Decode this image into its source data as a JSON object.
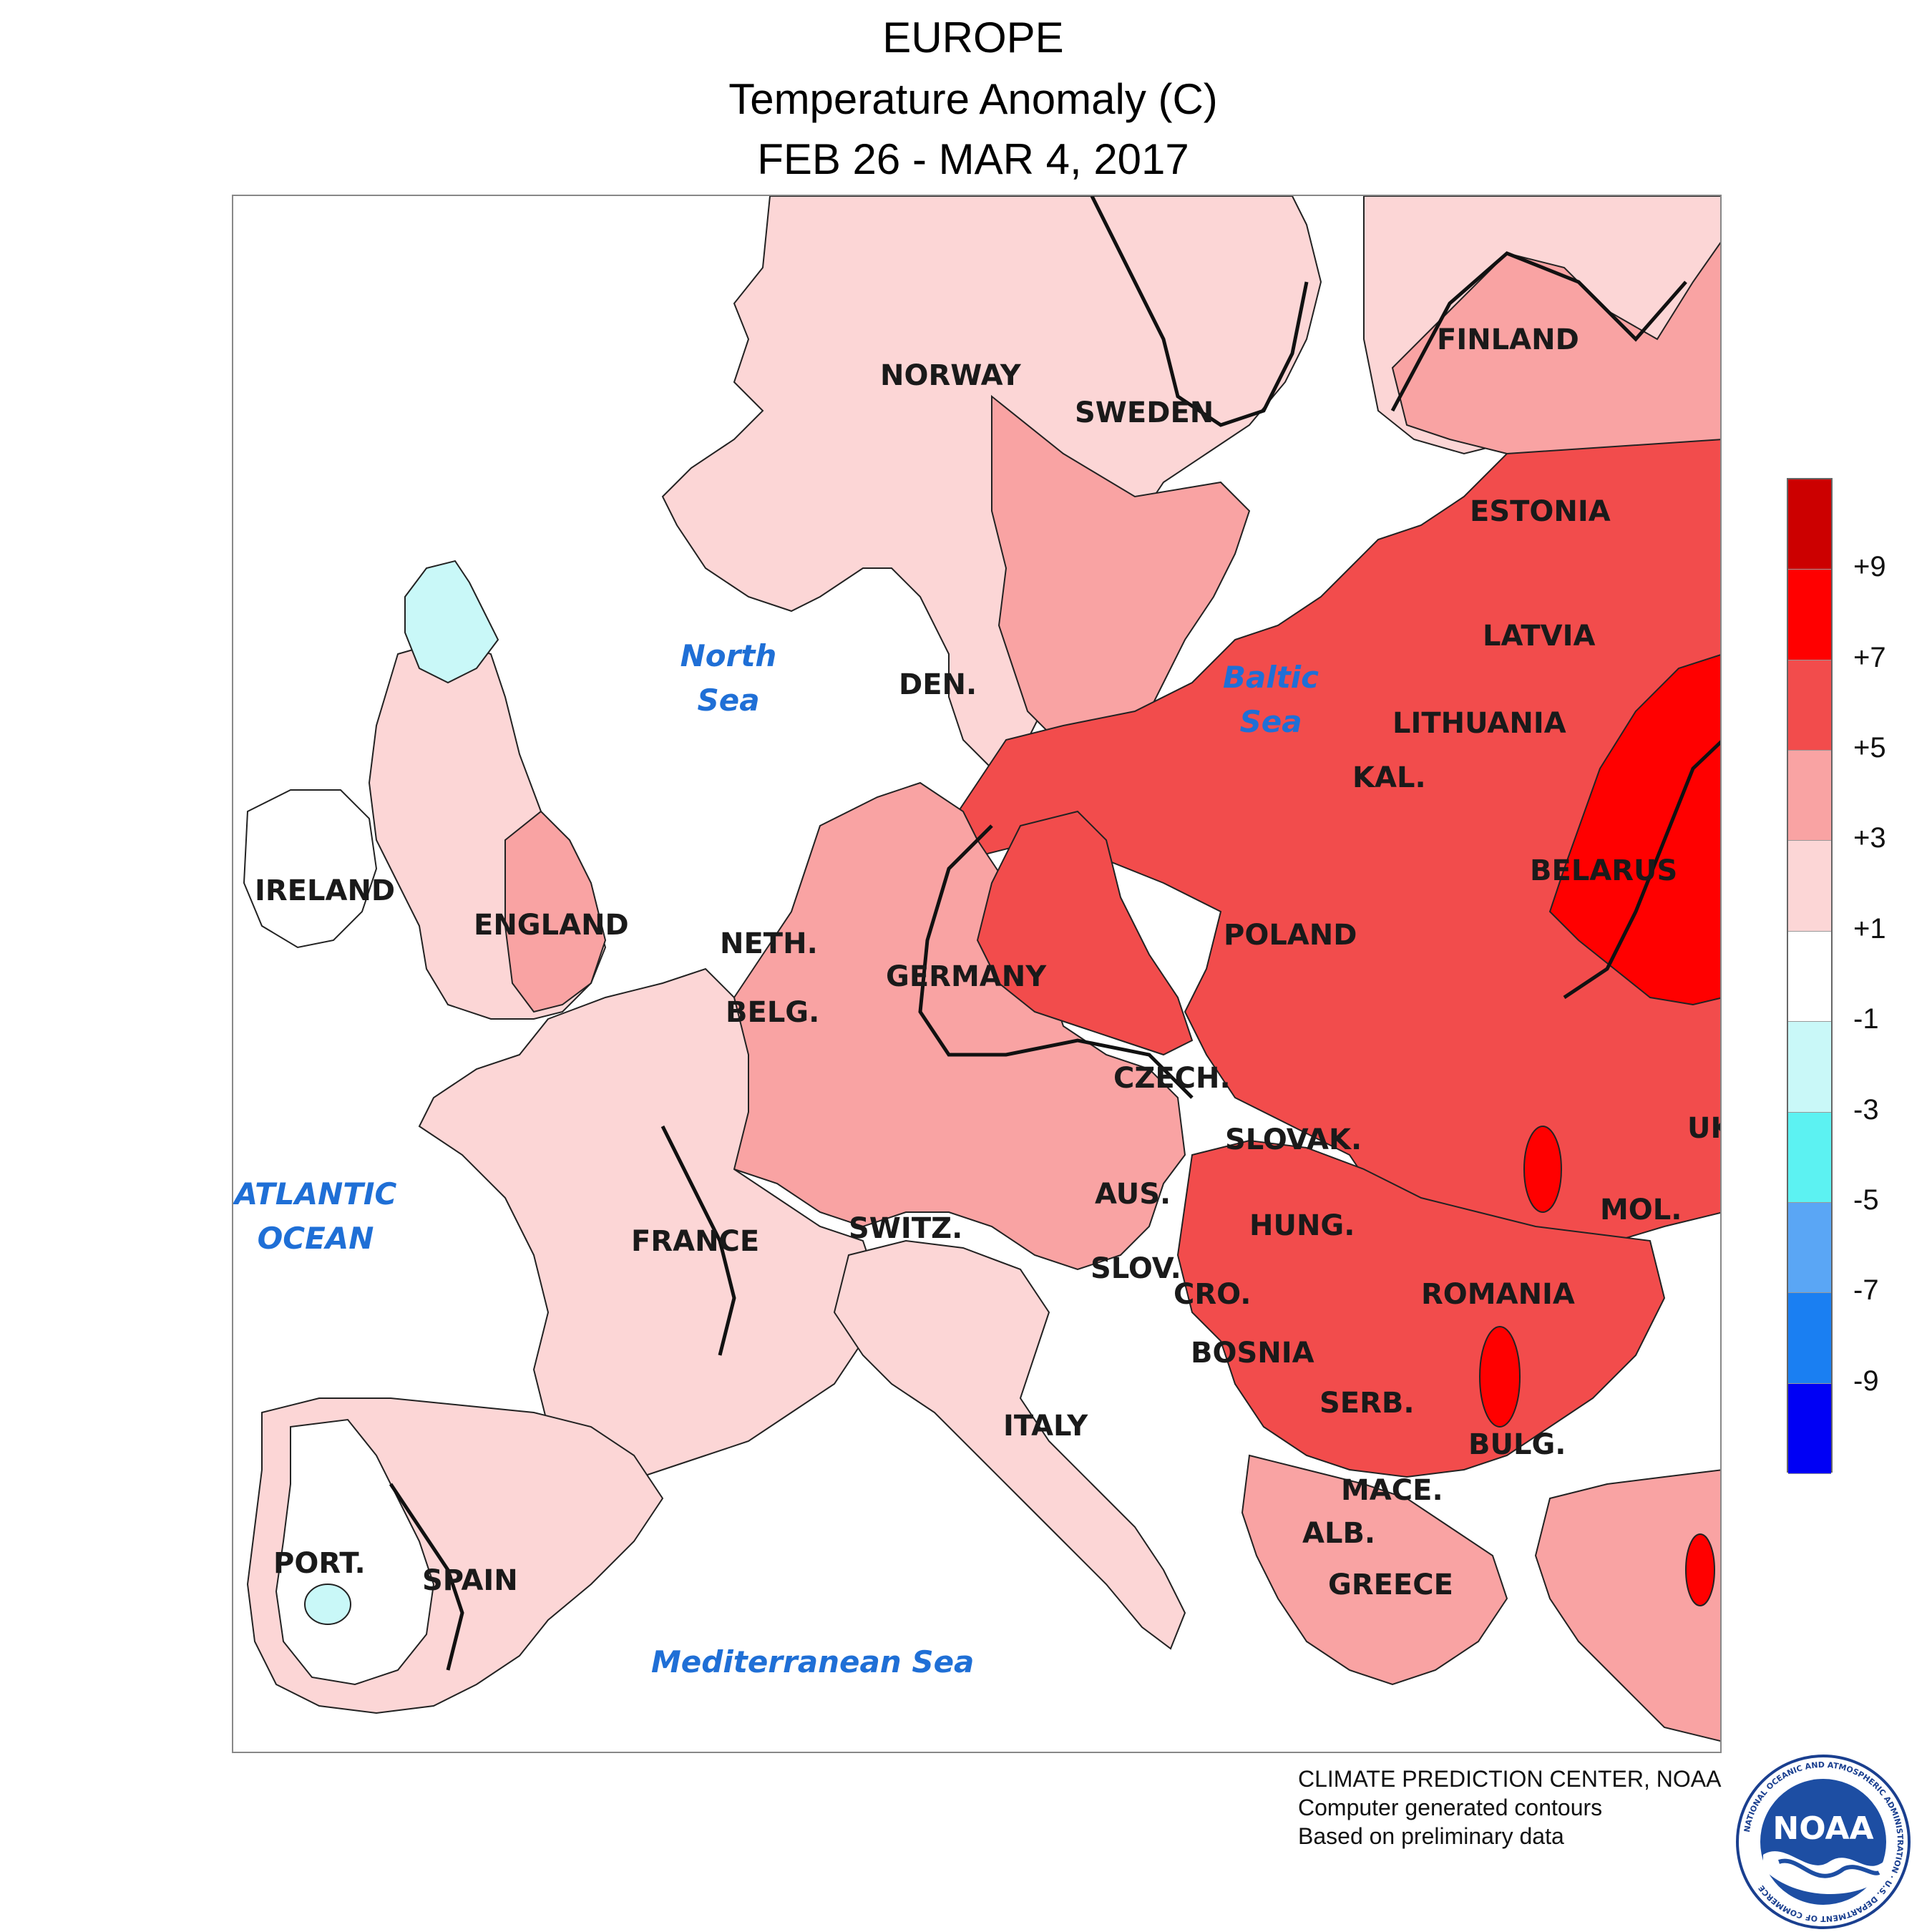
{
  "header": {
    "line1": "EUROPE",
    "line2": "Temperature Anomaly (C)",
    "line3": "FEB 26 - MAR 4, 2017"
  },
  "countries": [
    {
      "name": "NORWAY",
      "key": "norway"
    },
    {
      "name": "SWEDEN",
      "key": "sweden"
    },
    {
      "name": "FINLAND",
      "key": "finland"
    },
    {
      "name": "ESTONIA",
      "key": "estonia"
    },
    {
      "name": "LATVIA",
      "key": "latvia"
    },
    {
      "name": "LITHUANIA",
      "key": "lithuania"
    },
    {
      "name": "KAL.",
      "key": "kal"
    },
    {
      "name": "BELARUS",
      "key": "belarus"
    },
    {
      "name": "POLAND",
      "key": "poland"
    },
    {
      "name": "DEN.",
      "key": "den"
    },
    {
      "name": "IRELAND",
      "key": "ireland"
    },
    {
      "name": "ENGLAND",
      "key": "england"
    },
    {
      "name": "NETH.",
      "key": "neth"
    },
    {
      "name": "BELG.",
      "key": "belg"
    },
    {
      "name": "GERMANY",
      "key": "germany"
    },
    {
      "name": "CZECH.",
      "key": "czech"
    },
    {
      "name": "SLOVAK.",
      "key": "slovak"
    },
    {
      "name": "UK",
      "key": "uk"
    },
    {
      "name": "AUS.",
      "key": "aus"
    },
    {
      "name": "HUNG.",
      "key": "hung"
    },
    {
      "name": "MOL.",
      "key": "mol"
    },
    {
      "name": "FRANCE",
      "key": "france"
    },
    {
      "name": "SWITZ.",
      "key": "switz"
    },
    {
      "name": "SLOV.",
      "key": "slov"
    },
    {
      "name": "CRO.",
      "key": "cro"
    },
    {
      "name": "ROMANIA",
      "key": "romania"
    },
    {
      "name": "BOSNIA",
      "key": "bosnia"
    },
    {
      "name": "SERB.",
      "key": "serb"
    },
    {
      "name": "BULG.",
      "key": "bulg"
    },
    {
      "name": "ITALY",
      "key": "italy"
    },
    {
      "name": "MACE.",
      "key": "mace"
    },
    {
      "name": "ALB.",
      "key": "alb"
    },
    {
      "name": "GREECE",
      "key": "greece"
    },
    {
      "name": "PORT.",
      "key": "port"
    },
    {
      "name": "SPAIN",
      "key": "spain"
    }
  ],
  "seas": [
    {
      "key": "north_sea",
      "line1": "North",
      "line2": "Sea"
    },
    {
      "key": "baltic_sea",
      "line1": "Baltic",
      "line2": "Sea"
    },
    {
      "key": "atlantic",
      "line1": "ATLANTIC",
      "line2": "OCEAN"
    },
    {
      "key": "mediterranean",
      "line1": "Mediterranean Sea",
      "line2": ""
    }
  ],
  "legend": {
    "colors": [
      "#cc0000",
      "#ff0000",
      "#f24c4c",
      "#f9a3a3",
      "#fcd6d6",
      "#ffffff",
      "#c9f8f8",
      "#5cf2f2",
      "#5aa6f5",
      "#1a7ff2",
      "#0000f5"
    ],
    "ticks": [
      "+9",
      "+7",
      "+5",
      "+3",
      "+1",
      "-1",
      "-3",
      "-5",
      "-7",
      "-9"
    ]
  },
  "credits": {
    "line1": "CLIMATE PREDICTION CENTER, NOAA",
    "line2": "Computer generated contours",
    "line3": "Based on preliminary data"
  },
  "logo": {
    "text": "NOAA",
    "ring_text": "NATIONAL OCEANIC AND ATMOSPHERIC ADMINISTRATION · U.S. DEPARTMENT OF COMMERCE"
  },
  "anomaly_classes": {
    "c1_3": "#fcd6d6",
    "c3_5": "#f9a3a3",
    "c5_7": "#f24c4c",
    "c7_9": "#ff0000",
    "cm1_m3": "#c9f8f8"
  }
}
